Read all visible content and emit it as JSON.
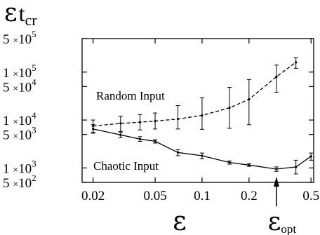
{
  "chart_data": {
    "type": "line",
    "ylabel": "ε",
    "ylabel_sub": "t",
    "ylabel_subsub": "cr",
    "xlabel": "ε",
    "annotation": {
      "symbol": "ε",
      "subscript": "opt",
      "x": 0.3
    },
    "x_scale": "log",
    "y_scale": "log",
    "xlim": [
      0.017,
      0.52
    ],
    "ylim": [
      500,
      500000
    ],
    "x_ticks": [
      {
        "value": 0.02,
        "label": "0.02"
      },
      {
        "value": 0.05,
        "label": "0.05"
      },
      {
        "value": 0.1,
        "label": "0.1"
      },
      {
        "value": 0.2,
        "label": "0.2"
      },
      {
        "value": 0.5,
        "label": "0.5"
      }
    ],
    "y_ticks": [
      {
        "value": 500000,
        "mant": "5",
        "exp": "5"
      },
      {
        "value": 100000,
        "mant": "1",
        "exp": "5"
      },
      {
        "value": 50000,
        "mant": "5",
        "exp": "4"
      },
      {
        "value": 10000,
        "mant": "1",
        "exp": "4"
      },
      {
        "value": 5000,
        "mant": "5",
        "exp": "3"
      },
      {
        "value": 1000,
        "mant": "1",
        "exp": "3"
      },
      {
        "value": 500,
        "mant": "5",
        "exp": "2"
      }
    ],
    "tick_times": "×",
    "tick_base": "10",
    "series": [
      {
        "name": "Random Input",
        "style": "dashed",
        "x": [
          0.02,
          0.03,
          0.04,
          0.05,
          0.07,
          0.1,
          0.15,
          0.2,
          0.3,
          0.4
        ],
        "y": [
          7500,
          8500,
          9000,
          9500,
          10500,
          12500,
          18000,
          27000,
          80000,
          160000
        ],
        "y_err_low": [
          5500,
          5800,
          6200,
          6500,
          6500,
          6400,
          6700,
          8000,
          38000,
          120000
        ],
        "y_err_high": [
          10000,
          12000,
          13000,
          14000,
          20000,
          29000,
          48000,
          70000,
          140000,
          200000
        ]
      },
      {
        "name": "Chaotic Input",
        "style": "solid",
        "x": [
          0.02,
          0.03,
          0.04,
          0.05,
          0.07,
          0.1,
          0.15,
          0.2,
          0.3,
          0.4,
          0.5
        ],
        "y": [
          6500,
          4900,
          4000,
          3600,
          2100,
          1800,
          1300,
          1150,
          950,
          1050,
          1750
        ],
        "y_err_low": [
          5300,
          4300,
          3600,
          3300,
          1800,
          1550,
          1200,
          1080,
          850,
          750,
          1450
        ],
        "y_err_high": [
          8000,
          5600,
          4500,
          3900,
          2400,
          2050,
          1400,
          1230,
          1050,
          1450,
          2050
        ]
      }
    ]
  }
}
